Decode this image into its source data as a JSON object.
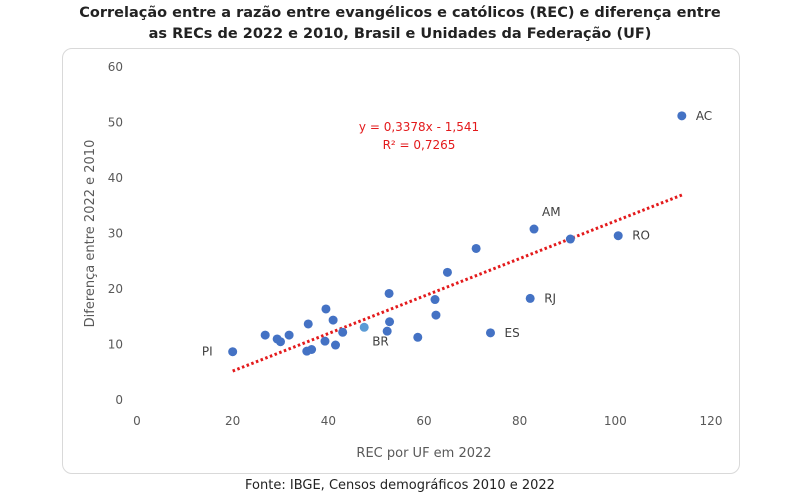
{
  "title_line1": "Correlação entre a razão entre evangélicos e católicos (REC) e diferença entre",
  "title_line2": "as RECs de 2022 e 2010, Brasil e Unidades da Federação (UF)",
  "source": "Fonte: IBGE, Censos demográficos 2010 e 2022",
  "chart_data": {
    "type": "scatter",
    "xlabel": "REC por UF em 2022",
    "ylabel": "Diferença entre 2022 e 2010",
    "xlim": [
      0,
      120
    ],
    "ylim": [
      0,
      60
    ],
    "x_ticks": [
      "0",
      "20",
      "40",
      "60",
      "80",
      "100",
      "120"
    ],
    "y_ticks": [
      "0",
      "10",
      "20",
      "30",
      "40",
      "50",
      "60"
    ],
    "grid": false,
    "legend": "none",
    "colors": {
      "points": "#4472C4",
      "highlight": "#5B9BD5",
      "trendline": "#E31A1C",
      "axis_text": "#595959"
    },
    "points": [
      {
        "x": 20.0,
        "y": 8.7,
        "label": "PI"
      },
      {
        "x": 26.8,
        "y": 11.7
      },
      {
        "x": 29.3,
        "y": 11.0
      },
      {
        "x": 30.0,
        "y": 10.5
      },
      {
        "x": 31.8,
        "y": 11.7
      },
      {
        "x": 35.5,
        "y": 8.8
      },
      {
        "x": 35.8,
        "y": 13.7
      },
      {
        "x": 36.5,
        "y": 9.1
      },
      {
        "x": 39.3,
        "y": 10.6
      },
      {
        "x": 39.5,
        "y": 16.4
      },
      {
        "x": 41.0,
        "y": 14.4
      },
      {
        "x": 41.5,
        "y": 9.9
      },
      {
        "x": 43.0,
        "y": 12.2
      },
      {
        "x": 47.5,
        "y": 13.1,
        "label": "BR",
        "highlight": true
      },
      {
        "x": 52.3,
        "y": 12.4
      },
      {
        "x": 52.7,
        "y": 19.2
      },
      {
        "x": 52.8,
        "y": 14.1
      },
      {
        "x": 58.7,
        "y": 11.3
      },
      {
        "x": 62.3,
        "y": 18.1
      },
      {
        "x": 62.5,
        "y": 15.3
      },
      {
        "x": 64.9,
        "y": 23.0
      },
      {
        "x": 70.9,
        "y": 27.3
      },
      {
        "x": 73.9,
        "y": 12.1,
        "label": "ES"
      },
      {
        "x": 82.2,
        "y": 18.3,
        "label": "RJ"
      },
      {
        "x": 83.0,
        "y": 30.8,
        "label": "AM"
      },
      {
        "x": 90.6,
        "y": 29.0
      },
      {
        "x": 100.6,
        "y": 29.6,
        "label": "RO"
      },
      {
        "x": 113.9,
        "y": 51.2,
        "label": "AC"
      }
    ],
    "trendline": {
      "slope": 0.3378,
      "intercept": -1.541,
      "x_range": [
        20,
        114
      ],
      "equation": "y = 0,3378x - 1,541",
      "r_squared": "R² = 0,7265"
    }
  }
}
